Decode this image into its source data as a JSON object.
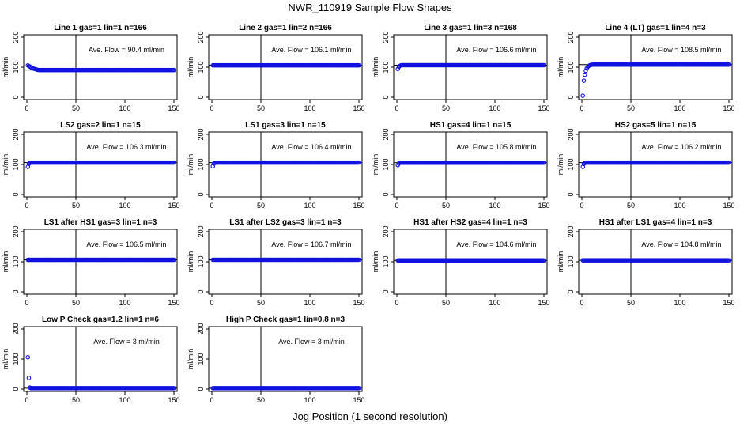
{
  "title": "NWR_110919  Sample Flow Shapes",
  "xlabel": "Jog Position (1 second resolution)",
  "colors": {
    "points": "#1010e0",
    "axis": "#000000"
  },
  "chart_data": [
    {
      "type": "scatter",
      "title": "Line 1 gas=1 lin=1 n=166",
      "ylabel": "ml/min",
      "annotation": "Ave. Flow =  90.4  ml/min",
      "xlim": [
        0,
        150
      ],
      "ylim": [
        0,
        200
      ],
      "x_ticks": [
        0,
        50,
        100,
        150
      ],
      "y_ticks": [
        0,
        100,
        200
      ],
      "hline": 90.4,
      "vline": 50,
      "series": [
        {
          "points": [
            [
              1,
              106
            ],
            [
              2,
              104
            ],
            [
              3,
              102
            ],
            [
              4,
              100
            ],
            [
              5,
              98
            ],
            [
              6,
              96
            ],
            [
              7,
              95
            ],
            [
              8,
              94
            ],
            [
              9,
              93
            ],
            [
              10,
              92
            ],
            [
              11,
              91
            ],
            [
              12,
              90.5
            ],
            [
              13,
              90.4
            ]
          ],
          "plateau": {
            "x": [
              14,
              150
            ],
            "y": 90.4
          }
        }
      ]
    },
    {
      "type": "scatter",
      "title": "Line 2 gas=1 lin=2 n=166",
      "ylabel": "ml/min",
      "annotation": "Ave. Flow = 106.1  ml/min",
      "xlim": [
        0,
        150
      ],
      "ylim": [
        0,
        200
      ],
      "x_ticks": [
        0,
        50,
        100,
        150
      ],
      "y_ticks": [
        0,
        100,
        200
      ],
      "hline": 106.1,
      "vline": 50,
      "series": [
        {
          "points": [],
          "plateau": {
            "x": [
              1,
              150
            ],
            "y": 106.1
          }
        }
      ]
    },
    {
      "type": "scatter",
      "title": "Line 3 gas=1 lin=3 n=168",
      "ylabel": "ml/min",
      "annotation": "Ave. Flow = 106.6  ml/min",
      "xlim": [
        0,
        150
      ],
      "ylim": [
        0,
        200
      ],
      "x_ticks": [
        0,
        50,
        100,
        150
      ],
      "y_ticks": [
        0,
        100,
        200
      ],
      "hline": 106.6,
      "vline": 50,
      "series": [
        {
          "points": [
            [
              1,
              94
            ],
            [
              2,
              101
            ],
            [
              3,
              104
            ],
            [
              4,
              106
            ]
          ],
          "plateau": {
            "x": [
              5,
              150
            ],
            "y": 106.6
          }
        }
      ]
    },
    {
      "type": "scatter",
      "title": "Line 4 (LT) gas=1 lin=4 n=3",
      "ylabel": "ml/min",
      "annotation": "Ave. Flow = 108.5  ml/min",
      "xlim": [
        0,
        150
      ],
      "ylim": [
        0,
        200
      ],
      "x_ticks": [
        0,
        50,
        100,
        150
      ],
      "y_ticks": [
        0,
        100,
        200
      ],
      "hline": 108.5,
      "vline": 50,
      "series": [
        {
          "points": [
            [
              1,
              5
            ],
            [
              2,
              55
            ],
            [
              3,
              75
            ],
            [
              4,
              88
            ],
            [
              5,
              96
            ],
            [
              6,
              101
            ],
            [
              7,
              104
            ],
            [
              8,
              106
            ],
            [
              9,
              107.5
            ],
            [
              10,
              108
            ]
          ],
          "plateau": {
            "x": [
              11,
              150
            ],
            "y": 108.5
          }
        }
      ]
    },
    {
      "type": "scatter",
      "title": "LS2 gas=2 lin=1 n=15",
      "ylabel": "ml/min",
      "annotation": "Ave. Flow = 106.3  ml/min",
      "xlim": [
        0,
        150
      ],
      "ylim": [
        0,
        200
      ],
      "x_ticks": [
        0,
        50,
        100,
        150
      ],
      "y_ticks": [
        0,
        100,
        200
      ],
      "hline": 106.3,
      "vline": 50,
      "series": [
        {
          "points": [
            [
              1,
              92
            ],
            [
              2,
              102
            ],
            [
              3,
              105
            ]
          ],
          "plateau": {
            "x": [
              4,
              150
            ],
            "y": 106.3
          }
        }
      ]
    },
    {
      "type": "scatter",
      "title": "LS1 gas=3 lin=1 n=15",
      "ylabel": "ml/min",
      "annotation": "Ave. Flow = 106.4  ml/min",
      "xlim": [
        0,
        150
      ],
      "ylim": [
        0,
        200
      ],
      "x_ticks": [
        0,
        50,
        100,
        150
      ],
      "y_ticks": [
        0,
        100,
        200
      ],
      "hline": 106.4,
      "vline": 50,
      "series": [
        {
          "points": [
            [
              1,
              94
            ],
            [
              2,
              103
            ],
            [
              3,
              105
            ]
          ],
          "plateau": {
            "x": [
              4,
              150
            ],
            "y": 106.4
          }
        }
      ]
    },
    {
      "type": "scatter",
      "title": "HS1 gas=4 lin=1 n=15",
      "ylabel": "ml/min",
      "annotation": "Ave. Flow = 105.8  ml/min",
      "xlim": [
        0,
        150
      ],
      "ylim": [
        0,
        200
      ],
      "x_ticks": [
        0,
        50,
        100,
        150
      ],
      "y_ticks": [
        0,
        100,
        200
      ],
      "hline": 105.8,
      "vline": 50,
      "series": [
        {
          "points": [
            [
              1,
              98
            ],
            [
              2,
              103
            ]
          ],
          "plateau": {
            "x": [
              3,
              150
            ],
            "y": 105.8
          }
        }
      ]
    },
    {
      "type": "scatter",
      "title": "HS2 gas=5 lin=1 n=15",
      "ylabel": "ml/min",
      "annotation": "Ave. Flow = 106.2  ml/min",
      "xlim": [
        0,
        150
      ],
      "ylim": [
        0,
        200
      ],
      "x_ticks": [
        0,
        50,
        100,
        150
      ],
      "y_ticks": [
        0,
        100,
        200
      ],
      "hline": 106.2,
      "vline": 50,
      "series": [
        {
          "points": [
            [
              1,
              92
            ],
            [
              2,
              102
            ],
            [
              3,
              105
            ]
          ],
          "plateau": {
            "x": [
              4,
              150
            ],
            "y": 106.2
          }
        }
      ]
    },
    {
      "type": "scatter",
      "title": "LS1 after HS1 gas=3 lin=1 n=3",
      "ylabel": "ml/min",
      "annotation": "Ave. Flow = 106.5  ml/min",
      "xlim": [
        0,
        150
      ],
      "ylim": [
        0,
        200
      ],
      "x_ticks": [
        0,
        50,
        100,
        150
      ],
      "y_ticks": [
        0,
        100,
        200
      ],
      "hline": 106.5,
      "vline": 50,
      "series": [
        {
          "points": [],
          "plateau": {
            "x": [
              1,
              150
            ],
            "y": 106.5
          }
        }
      ]
    },
    {
      "type": "scatter",
      "title": "LS1 after LS2 gas=3 lin=1 n=3",
      "ylabel": "ml/min",
      "annotation": "Ave. Flow = 106.7  ml/min",
      "xlim": [
        0,
        150
      ],
      "ylim": [
        0,
        200
      ],
      "x_ticks": [
        0,
        50,
        100,
        150
      ],
      "y_ticks": [
        0,
        100,
        200
      ],
      "hline": 106.7,
      "vline": 50,
      "series": [
        {
          "points": [],
          "plateau": {
            "x": [
              1,
              150
            ],
            "y": 106.7
          }
        }
      ]
    },
    {
      "type": "scatter",
      "title": "HS1 after HS2 gas=4 lin=1 n=3",
      "ylabel": "ml/min",
      "annotation": "Ave. Flow = 104.6  ml/min",
      "xlim": [
        0,
        150
      ],
      "ylim": [
        0,
        200
      ],
      "x_ticks": [
        0,
        50,
        100,
        150
      ],
      "y_ticks": [
        0,
        100,
        200
      ],
      "hline": 104.6,
      "vline": 50,
      "series": [
        {
          "points": [],
          "plateau": {
            "x": [
              1,
              150
            ],
            "y": 104.6
          }
        }
      ]
    },
    {
      "type": "scatter",
      "title": "HS1 after LS1 gas=4 lin=1 n=3",
      "ylabel": "ml/min",
      "annotation": "Ave. Flow = 104.8  ml/min",
      "xlim": [
        0,
        150
      ],
      "ylim": [
        0,
        200
      ],
      "x_ticks": [
        0,
        50,
        100,
        150
      ],
      "y_ticks": [
        0,
        100,
        200
      ],
      "hline": 104.8,
      "vline": 50,
      "series": [
        {
          "points": [],
          "plateau": {
            "x": [
              1,
              150
            ],
            "y": 104.8
          }
        }
      ]
    },
    {
      "type": "scatter",
      "title": "Low P Check gas=1.2 lin=1 n=6",
      "ylabel": "ml/min",
      "annotation": "Ave. Flow =  3  ml/min",
      "xlim": [
        0,
        150
      ],
      "ylim": [
        0,
        200
      ],
      "x_ticks": [
        0,
        50,
        100,
        150
      ],
      "y_ticks": [
        0,
        100,
        200
      ],
      "hline": 3,
      "vline": 50,
      "series": [
        {
          "points": [
            [
              1,
              106
            ],
            [
              2,
              37
            ],
            [
              3,
              5
            ]
          ],
          "plateau": {
            "x": [
              4,
              150
            ],
            "y": 3
          }
        }
      ]
    },
    {
      "type": "scatter",
      "title": "High P Check gas=1 lin=0.8 n=3",
      "ylabel": "ml/min",
      "annotation": "Ave. Flow =  3  ml/min",
      "xlim": [
        0,
        150
      ],
      "ylim": [
        0,
        200
      ],
      "x_ticks": [
        0,
        50,
        100,
        150
      ],
      "y_ticks": [
        0,
        100,
        200
      ],
      "hline": 3,
      "vline": 50,
      "series": [
        {
          "points": [],
          "plateau": {
            "x": [
              1,
              150
            ],
            "y": 3
          }
        }
      ]
    }
  ]
}
